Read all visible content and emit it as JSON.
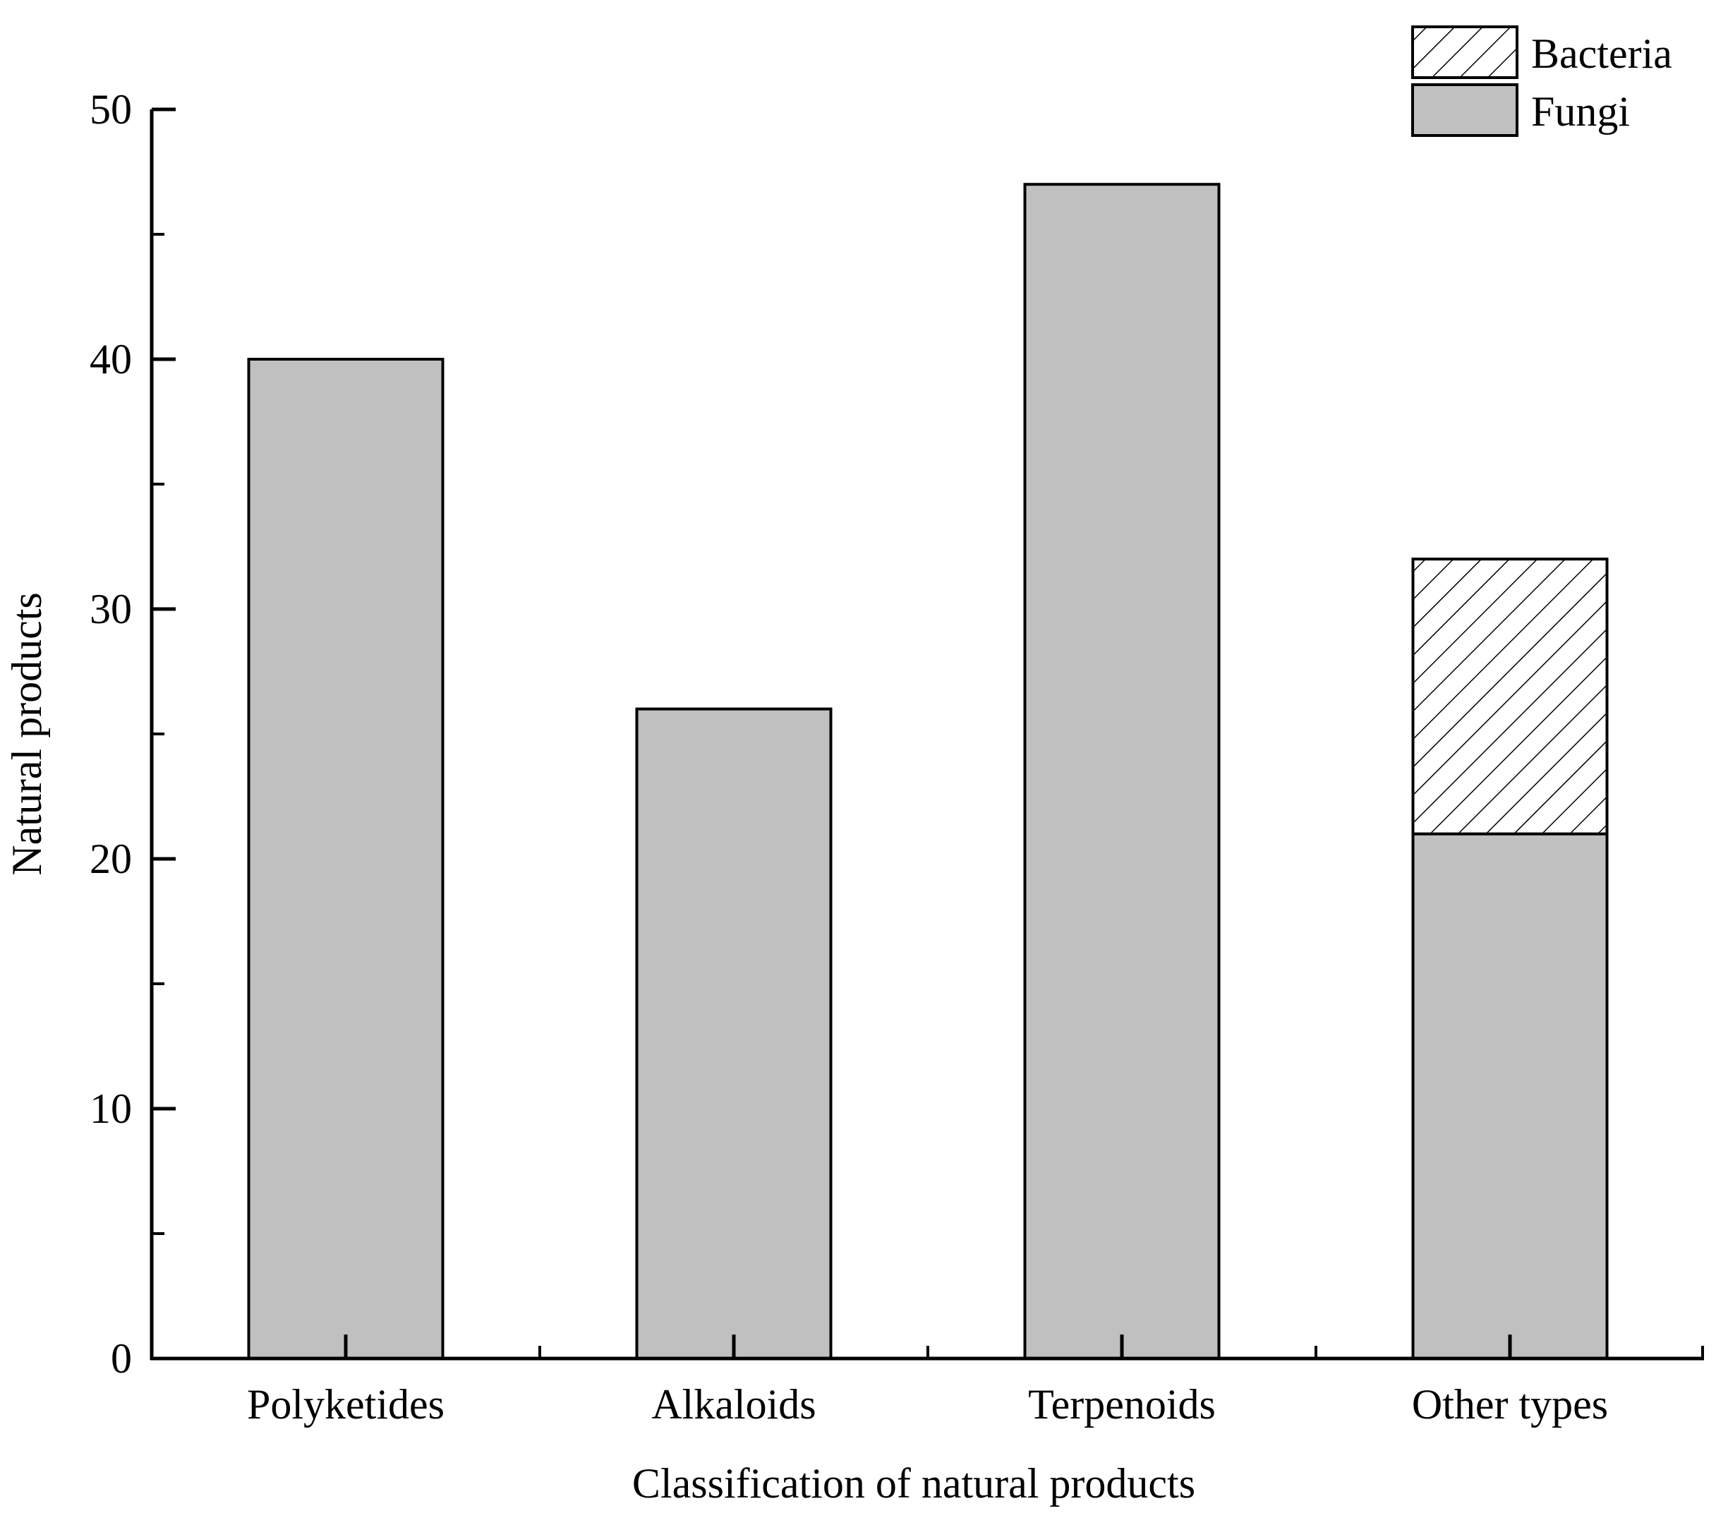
{
  "chart_data": {
    "type": "bar",
    "stacked": true,
    "title": "",
    "xlabel": "Classification of natural products",
    "ylabel": "Natural products",
    "categories": [
      "Polyketides",
      "Alkaloids",
      "Terpenoids",
      "Other types"
    ],
    "series": [
      {
        "name": "Fungi",
        "values": [
          40,
          26,
          47,
          21
        ],
        "fill": "#c0c0c0",
        "pattern": "solid"
      },
      {
        "name": "Bacteria",
        "values": [
          0,
          0,
          0,
          11
        ],
        "fill": "#ffffff",
        "pattern": "hatch"
      }
    ],
    "ylim": [
      0,
      50
    ],
    "yticks": [
      "0",
      "10",
      "20",
      "30",
      "40",
      "50"
    ],
    "legend": {
      "position": "top-right",
      "entries": [
        "Bacteria",
        "Fungi"
      ]
    },
    "grid": false
  }
}
